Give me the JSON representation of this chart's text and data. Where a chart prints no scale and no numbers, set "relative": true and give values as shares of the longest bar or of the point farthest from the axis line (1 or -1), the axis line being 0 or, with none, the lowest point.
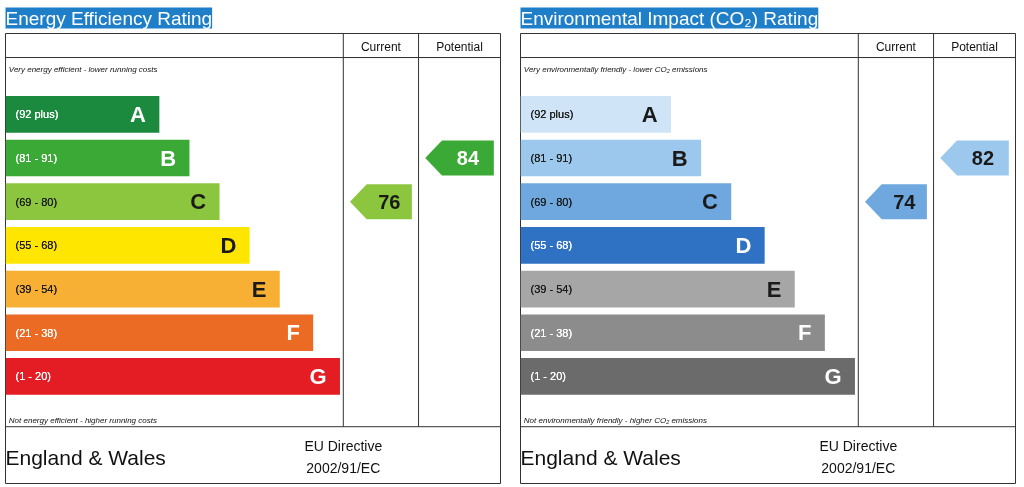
{
  "chart_data": [
    {
      "type": "bar",
      "orientation": "horizontal",
      "relative": true,
      "title": "Energy Efficiency Rating",
      "values": [
        0.46,
        0.55,
        0.64,
        0.73,
        0.82,
        0.92,
        1
      ],
      "categories": [
        "(92 plus)",
        "(81 - 91)",
        "(69 - 80)",
        "(55 - 68)",
        "(39 - 54)",
        "(21 - 38)",
        "(1 - 20)"
      ],
      "colors": [
        "#1b8a3e",
        "#3aa935",
        "#8cc63f",
        "#ffe600",
        "#f7b034",
        "#ec6b24",
        "#e31d23"
      ],
      "annotations": [
        "A",
        "B",
        "C",
        "D",
        "E",
        "F",
        "G",
        "76",
        "84",
        "Current",
        "Potential",
        "Very energy efficient - lower running costs",
        "Not energy efficient - higher running costs",
        "England & Wales",
        "EU Directive",
        "2002/91/EC"
      ]
    },
    {
      "type": "bar",
      "orientation": "horizontal",
      "relative": true,
      "title": "Environmental Impact (CO₂) Rating",
      "values": [
        0.45,
        0.54,
        0.63,
        0.73,
        0.82,
        0.91,
        1
      ],
      "categories": [
        "(92 plus)",
        "(81 - 91)",
        "(69 - 80)",
        "(55 - 68)",
        "(39 - 54)",
        "(21 - 38)",
        "(1 - 20)"
      ],
      "colors": [
        "#cfe5f7",
        "#9cc8ee",
        "#6ea8de",
        "#2f72c3",
        "#a6a6a6",
        "#8c8c8c",
        "#6b6b6b"
      ],
      "annotations": [
        "A",
        "B",
        "C",
        "D",
        "E",
        "F",
        "G",
        "74",
        "82",
        "Current",
        "Potential",
        "Very environmentally friendly - lower CO₂ emissions",
        "Not environmentally friendly - higher CO₂ emissions",
        "England & Wales",
        "EU Directive",
        "2002/91/EC"
      ]
    }
  ]
}
